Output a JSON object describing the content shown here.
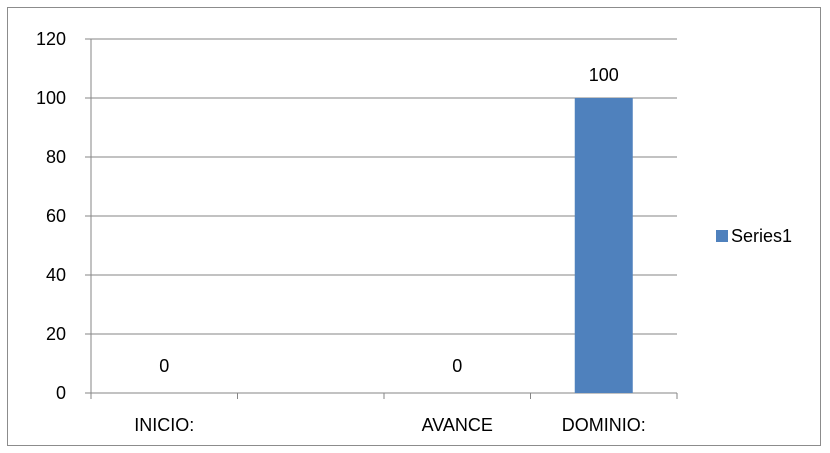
{
  "chart_data": {
    "type": "bar",
    "categories": [
      "INICIO:",
      "",
      "AVANCE",
      "DOMINIO:"
    ],
    "series": [
      {
        "name": "Series1",
        "values": [
          0,
          null,
          0,
          100
        ],
        "data_labels": [
          "0",
          "",
          "0",
          "100"
        ],
        "color": "#4f81bd"
      }
    ],
    "ylim": [
      0,
      120
    ],
    "yticks": [
      0,
      20,
      40,
      60,
      80,
      100,
      120
    ],
    "grid": true,
    "legend": "right",
    "title": "",
    "xlabel": "",
    "ylabel": ""
  }
}
